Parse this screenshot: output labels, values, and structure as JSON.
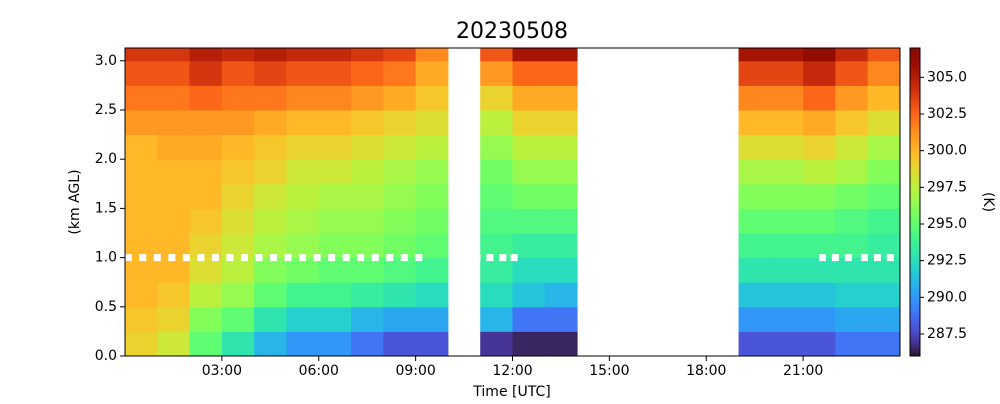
{
  "chart_data": {
    "type": "heatmap",
    "title": "20230508",
    "x_label": "Time [UTC]",
    "y_label": "(km AGL)",
    "colorbar_label": "(K)",
    "x": [
      0.5,
      1.5,
      2.5,
      3.5,
      4.5,
      5.5,
      6.5,
      7.5,
      8.5,
      9.5,
      10.5,
      11.5,
      12.5,
      13.5,
      14.5,
      15.5,
      16.5,
      17.5,
      18.5,
      19.5,
      20.5,
      21.5,
      22.5,
      23.5
    ],
    "y": [
      0.125,
      0.375,
      0.625,
      0.875,
      1.125,
      1.375,
      1.625,
      1.875,
      2.125,
      2.375,
      2.625,
      2.875,
      3.125
    ],
    "values": [
      [
        299,
        299.5,
        300,
        300,
        300,
        300,
        300,
        300,
        300,
        301,
        302,
        303,
        304
      ],
      [
        298,
        299,
        299.5,
        300,
        300,
        300,
        300,
        300,
        300.5,
        301,
        302,
        303,
        304
      ],
      [
        295,
        296,
        297.5,
        298.5,
        299,
        299.5,
        300,
        300,
        300.5,
        301,
        302.5,
        304,
        305
      ],
      [
        293,
        295,
        296.5,
        297.5,
        298,
        298.5,
        299,
        299.5,
        300,
        301,
        302,
        303,
        304.5
      ],
      [
        291,
        293,
        295,
        296,
        297,
        297.5,
        298,
        299,
        299.5,
        300.5,
        302,
        303.5,
        305
      ],
      [
        290,
        292,
        294,
        295.5,
        296.5,
        297,
        297.5,
        298,
        299,
        300,
        301.5,
        303,
        304.5
      ],
      [
        290,
        292,
        294,
        295,
        296,
        296.5,
        297,
        298,
        299,
        300,
        301.5,
        303,
        304.5
      ],
      [
        289,
        291,
        293.5,
        295,
        296,
        296.5,
        297,
        297.5,
        298.5,
        299.5,
        301,
        302.5,
        304
      ],
      [
        288,
        290.5,
        293,
        294.5,
        295.5,
        296,
        296.5,
        297,
        298,
        299,
        300.5,
        302,
        303.5
      ],
      [
        288,
        290.5,
        292.5,
        294,
        295,
        295.5,
        296,
        296.5,
        297.5,
        298.5,
        299.5,
        300.5,
        301.5
      ],
      null,
      [
        287,
        291,
        292.5,
        293.5,
        294,
        294.5,
        295,
        295.5,
        296.5,
        297.5,
        299,
        301,
        303
      ],
      [
        286.5,
        289,
        291.5,
        292.5,
        293.5,
        294.5,
        295.5,
        296.5,
        297.5,
        299,
        300.5,
        302.5,
        305.5
      ],
      [
        286.5,
        289,
        291,
        292.5,
        293.5,
        294.5,
        295.5,
        296.5,
        297.5,
        299,
        300.5,
        302.5,
        305.5
      ],
      null,
      null,
      null,
      null,
      null,
      [
        288,
        290,
        291.5,
        293,
        294,
        295,
        296,
        297,
        298.5,
        300,
        301.5,
        303.5,
        305.5
      ],
      [
        288,
        290,
        291.5,
        293,
        294,
        295,
        296,
        297,
        298.5,
        300,
        301.5,
        303.5,
        305.5
      ],
      [
        288,
        290,
        291.5,
        293,
        294,
        295,
        296,
        297.5,
        299,
        300.5,
        302.5,
        304.5,
        306.5
      ],
      [
        289,
        290.5,
        292,
        293,
        294,
        294.5,
        295.5,
        297,
        298,
        299.5,
        301,
        303,
        304.5
      ],
      [
        289,
        290.5,
        292,
        293,
        293.5,
        294,
        295,
        296,
        297,
        298.5,
        300,
        301.5,
        303
      ]
    ],
    "markers": {
      "color": "#ffffff",
      "y": 1.0,
      "x": [
        0.1,
        0.55,
        1.0,
        1.45,
        1.9,
        2.35,
        2.8,
        3.25,
        3.7,
        4.15,
        4.6,
        5.05,
        5.5,
        5.95,
        6.4,
        6.85,
        7.3,
        7.75,
        8.2,
        8.65,
        9.1,
        10.9,
        11.3,
        11.7,
        12.05,
        21.6,
        22.0,
        22.4,
        22.9,
        23.3,
        23.7
      ]
    },
    "xlim": [
      0,
      24
    ],
    "xticks": [
      {
        "value": 3,
        "label": "03:00"
      },
      {
        "value": 6,
        "label": "06:00"
      },
      {
        "value": 9,
        "label": "09:00"
      },
      {
        "value": 12,
        "label": "12:00"
      },
      {
        "value": 15,
        "label": "15:00"
      },
      {
        "value": 18,
        "label": "18:00"
      },
      {
        "value": 21,
        "label": "21:00"
      }
    ],
    "ylim": [
      0,
      3.13
    ],
    "yticks": [
      {
        "value": 0,
        "label": "0.0"
      },
      0.5,
      {
        "value": 1,
        "label": "1.0"
      },
      1.5,
      {
        "value": 2,
        "label": "2.0"
      },
      2.5,
      {
        "value": 3,
        "label": "3.0"
      }
    ],
    "clim": [
      286,
      307
    ],
    "cticks": [
      287.5,
      {
        "value": 290,
        "label": "290.0"
      },
      292.5,
      {
        "value": 295,
        "label": "295.0"
      },
      297.5,
      {
        "value": 300,
        "label": "300.0"
      },
      302.5,
      {
        "value": 305,
        "label": "305.0"
      }
    ],
    "colormap": "turbo"
  }
}
